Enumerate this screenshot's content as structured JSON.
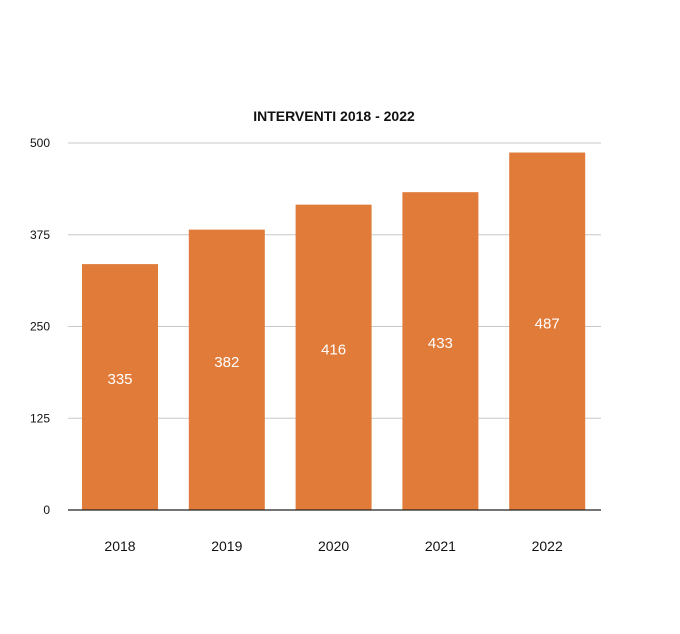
{
  "chart_data": {
    "type": "bar",
    "title": "INTERVENTI 2018 - 2022",
    "xlabel": "",
    "ylabel": "",
    "categories": [
      "2018",
      "2019",
      "2020",
      "2021",
      "2022"
    ],
    "values": [
      335,
      382,
      416,
      433,
      487
    ],
    "ylim": [
      0,
      500
    ],
    "yticks": [
      "0",
      "125",
      "250",
      "375",
      "500"
    ],
    "bar_color": "#E07B39",
    "data_label_color": "#FFFFFF",
    "grid": true,
    "legend": "none"
  }
}
